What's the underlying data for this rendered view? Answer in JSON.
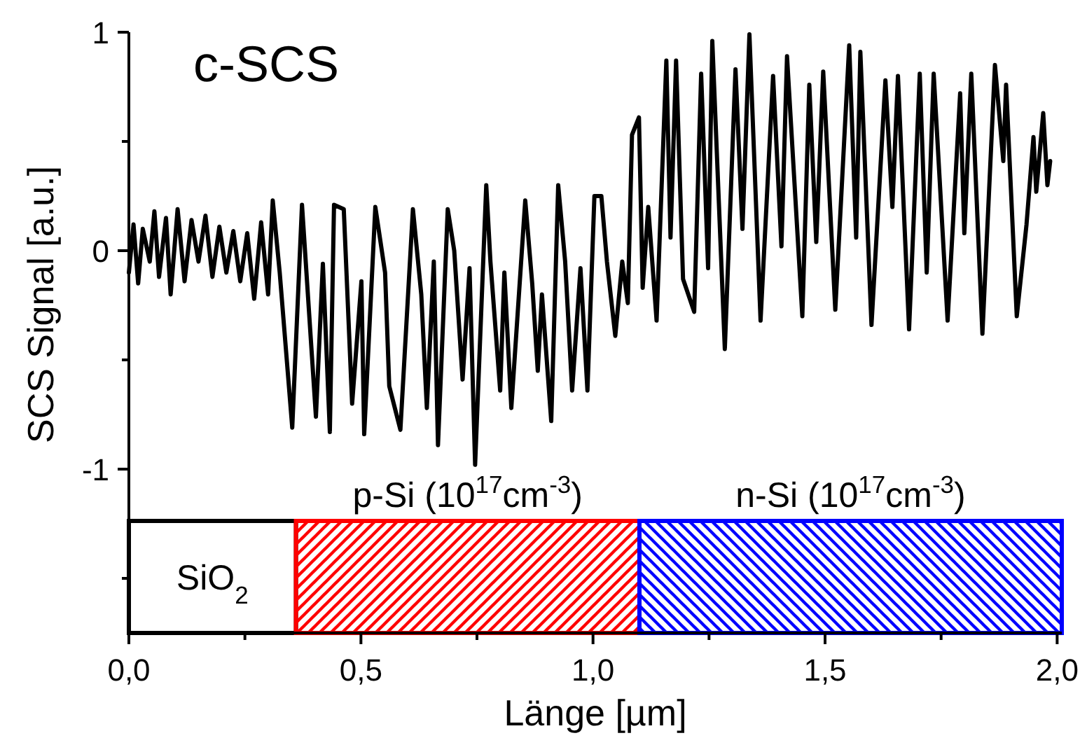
{
  "chart_data": {
    "type": "line",
    "title": "c-SCS",
    "xlabel": "Länge [µm]",
    "ylabel": "SCS Signal [a.u.]",
    "xlim": [
      0,
      2.01
    ],
    "ylim": [
      -1.75,
      1
    ],
    "xticks": [
      {
        "value": 0,
        "label": "0,0"
      },
      {
        "value": 0.25,
        "label": null
      },
      {
        "value": 0.5,
        "label": "0,5"
      },
      {
        "value": 0.75,
        "label": null
      },
      {
        "value": 1,
        "label": "1,0"
      },
      {
        "value": 1.25,
        "label": null
      },
      {
        "value": 1.5,
        "label": "1,5"
      },
      {
        "value": 1.75,
        "label": null
      },
      {
        "value": 2,
        "label": "2,0"
      }
    ],
    "yticks": [
      1,
      {
        "value": 0.5,
        "label": null
      },
      0,
      {
        "value": -0.5,
        "label": null
      },
      -1,
      {
        "value": -1.5,
        "label": null
      }
    ],
    "grid": false,
    "marker": "none",
    "line_style": "solid",
    "bands": [
      {
        "axis": "x",
        "from": 0,
        "to": 0.36,
        "label": "SiO$_{2}$",
        "color": "#000000"
      },
      {
        "axis": "x",
        "from": 0.36,
        "to": 1.1,
        "label": "p-Si (10$^{17}$cm$^{-3}$)",
        "color": "#ff0000"
      },
      {
        "axis": "x",
        "from": 1.1,
        "to": 2.01,
        "label": "n-Si (10$^{17}$cm$^{-3}$)",
        "color": "#0000ff"
      }
    ],
    "series": [
      {
        "color": "#000000",
        "x": [
          0,
          0.01,
          0.02,
          0.03,
          0.045,
          0.055,
          0.065,
          0.08,
          0.09,
          0.105,
          0.12,
          0.135,
          0.15,
          0.165,
          0.18,
          0.195,
          0.21,
          0.225,
          0.24,
          0.255,
          0.27,
          0.285,
          0.3,
          0.31,
          0.325,
          0.352,
          0.373,
          0.403,
          0.418,
          0.433,
          0.442,
          0.463,
          0.481,
          0.501,
          0.507,
          0.531,
          0.552,
          0.561,
          0.585,
          0.612,
          0.63,
          0.642,
          0.657,
          0.666,
          0.687,
          0.701,
          0.719,
          0.734,
          0.746,
          0.77,
          0.779,
          0.8,
          0.809,
          0.824,
          0.854,
          0.869,
          0.881,
          0.89,
          0.91,
          0.925,
          0.94,
          0.955,
          0.973,
          0.988,
          1.003,
          1.018,
          1.03,
          1.048,
          1.063,
          1.075,
          1.084,
          1.099,
          1.107,
          1.119,
          1.137,
          1.158,
          1.167,
          1.179,
          1.194,
          1.218,
          1.233,
          1.248,
          1.257,
          1.284,
          1.307,
          1.322,
          1.337,
          1.361,
          1.388,
          1.406,
          1.418,
          1.451,
          1.466,
          1.481,
          1.496,
          1.522,
          1.552,
          1.567,
          1.576,
          1.6,
          1.63,
          1.645,
          1.657,
          1.681,
          1.704,
          1.719,
          1.734,
          1.764,
          1.791,
          1.8,
          1.815,
          1.839,
          1.866,
          1.884,
          1.89,
          1.913,
          1.934,
          1.949,
          1.955,
          1.97,
          1.979,
          1.985
        ],
        "values": [
          -0.1,
          0.12,
          -0.15,
          0.1,
          -0.05,
          0.18,
          -0.12,
          0.15,
          -0.2,
          0.19,
          -0.14,
          0.14,
          -0.05,
          0.16,
          -0.12,
          0.11,
          -0.1,
          0.09,
          -0.14,
          0.08,
          -0.22,
          0.13,
          -0.2,
          0.23,
          -0.1,
          -0.81,
          0.21,
          -0.76,
          -0.06,
          -0.83,
          0.21,
          0.19,
          -0.7,
          -0.14,
          -0.84,
          0.2,
          -0.1,
          -0.62,
          -0.82,
          0.19,
          -0.2,
          -0.72,
          -0.05,
          -0.89,
          0.19,
          0,
          -0.59,
          -0.08,
          -0.98,
          0.3,
          -0.05,
          -0.64,
          -0.1,
          -0.72,
          0.23,
          -0.15,
          -0.55,
          -0.2,
          -0.78,
          0.3,
          -0.05,
          -0.64,
          -0.08,
          -0.64,
          0.25,
          0.25,
          -0.05,
          -0.39,
          -0.05,
          -0.24,
          0.53,
          0.61,
          -0.17,
          0.2,
          -0.32,
          0.87,
          0.06,
          0.87,
          -0.13,
          -0.28,
          0.81,
          -0.08,
          0.96,
          -0.45,
          0.83,
          0.1,
          0.99,
          -0.32,
          0.8,
          0.02,
          0.89,
          -0.3,
          0.76,
          0.04,
          0.82,
          -0.27,
          0.94,
          0.06,
          0.91,
          -0.34,
          0.78,
          0.2,
          0.8,
          -0.36,
          0.81,
          -0.1,
          0.81,
          -0.32,
          0.72,
          0.08,
          0.81,
          -0.38,
          0.85,
          0.41,
          0.76,
          -0.3,
          0.12,
          0.52,
          0.27,
          0.63,
          0.3,
          0.41
        ]
      }
    ]
  }
}
